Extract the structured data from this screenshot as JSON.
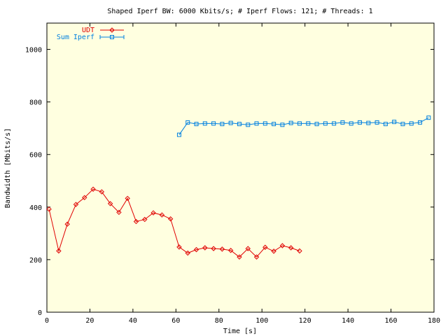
{
  "chart_data": {
    "type": "line",
    "title": "Shaped Iperf BW: 6000 Kbits/s; # Iperf Flows: 121; # Threads: 1",
    "xlabel": "Time [s]",
    "ylabel": "Bandwidth [Mbits/s]",
    "xlim": [
      0,
      180
    ],
    "ylim": [
      0,
      1100
    ],
    "x_ticks": [
      0,
      20,
      40,
      60,
      80,
      100,
      120,
      140,
      160,
      180
    ],
    "y_ticks": [
      0,
      200,
      400,
      600,
      800,
      1000
    ],
    "grid": false,
    "legend_position": "top-left",
    "colors": {
      "background": "#ffffe0",
      "axes": "#000000"
    },
    "series": [
      {
        "name": "UDT",
        "color": "#e00000",
        "marker": "diamond",
        "x": [
          1,
          5.5,
          9.5,
          13.5,
          17.5,
          21.5,
          25.5,
          29.5,
          33.5,
          37.5,
          41.5,
          45.5,
          49.5,
          53.5,
          57.5,
          61.5,
          65.5,
          69.5,
          73.5,
          77.5,
          81.5,
          85.5,
          89.5,
          93.5,
          97.5,
          101.5,
          105.5,
          109.5,
          113.5,
          117.5
        ],
        "values": [
          392,
          233,
          335,
          410,
          436,
          468,
          458,
          413,
          380,
          433,
          345,
          353,
          378,
          370,
          355,
          248,
          225,
          238,
          245,
          242,
          240,
          235,
          210,
          242,
          210,
          247,
          232,
          253,
          245,
          233
        ]
      },
      {
        "name": "Sum Iperf",
        "color": "#0080e0",
        "marker": "square",
        "x": [
          61.5,
          65.5,
          69.5,
          73.5,
          77.5,
          81.5,
          85.5,
          89.5,
          93.5,
          97.5,
          101.5,
          105.5,
          109.5,
          113.5,
          117.5,
          121.5,
          125.5,
          129.5,
          133.5,
          137.5,
          141.5,
          145.5,
          149.5,
          153.5,
          157.5,
          161.5,
          165.5,
          169.5,
          173.5,
          177.5
        ],
        "values": [
          675,
          722,
          716,
          718,
          718,
          716,
          720,
          716,
          713,
          718,
          718,
          716,
          713,
          720,
          718,
          718,
          716,
          718,
          718,
          722,
          718,
          722,
          720,
          722,
          716,
          724,
          716,
          718,
          722,
          740
        ]
      }
    ]
  }
}
